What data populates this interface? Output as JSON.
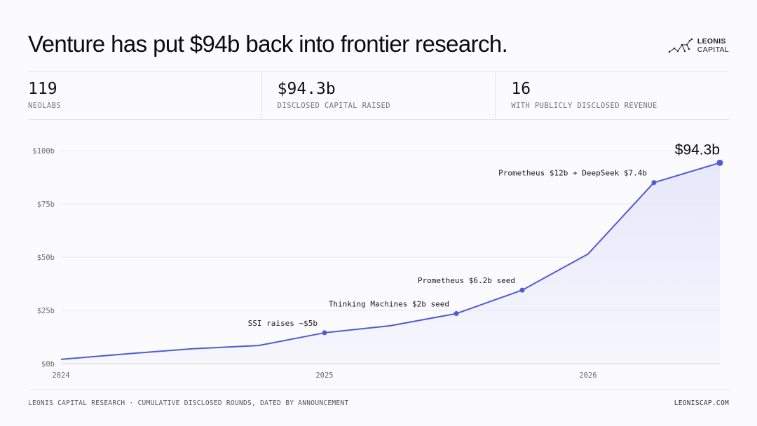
{
  "header": {
    "headline": "Venture has put $94b back into frontier research.",
    "logo_line1": "LEONIS",
    "logo_line2": "CAPITAL"
  },
  "stats": [
    {
      "value": "119",
      "label": "NEOLABS"
    },
    {
      "value": "$94.3b",
      "label": "DISCLOSED CAPITAL RAISED"
    },
    {
      "value": "16",
      "label": "WITH PUBLICLY DISCLOSED REVENUE"
    }
  ],
  "colors": {
    "line": "#4f5bd5",
    "fill": "#e7e8fb",
    "grid": "#e9e9ef",
    "axis_text": "#6b6b72"
  },
  "chart_data": {
    "type": "area",
    "xlabel": "",
    "ylabel": "",
    "x_ticks": [
      "2024",
      "2025",
      "2026"
    ],
    "y_ticks": [
      "$0b",
      "$25b",
      "$50b",
      "$75b",
      "$100b"
    ],
    "ylim": [
      0,
      100
    ],
    "xlim": [
      "2024-01",
      "2026-07"
    ],
    "grid": true,
    "series": [
      {
        "points": [
          {
            "x": "2024-01",
            "y": 2
          },
          {
            "x": "2024-04",
            "y": 4.6
          },
          {
            "x": "2024-07",
            "y": 7.0
          },
          {
            "x": "2024-10",
            "y": 8.5
          },
          {
            "x": "2025-01",
            "y": 14.5
          },
          {
            "x": "2025-04",
            "y": 17.8
          },
          {
            "x": "2025-07",
            "y": 23.5
          },
          {
            "x": "2025-10",
            "y": 34.5
          },
          {
            "x": "2026-01",
            "y": 51.5
          },
          {
            "x": "2026-04",
            "y": 85.0
          },
          {
            "x": "2026-07",
            "y": 94.3
          }
        ]
      }
    ],
    "annotations": [
      {
        "point_index": 4,
        "label": "SSI raises ~$5b",
        "align": "right"
      },
      {
        "point_index": 6,
        "label": "Thinking Machines $2b seed",
        "align": "right"
      },
      {
        "point_index": 7,
        "label": "Prometheus $6.2b seed",
        "align": "right"
      },
      {
        "point_index": 9,
        "label": "Prometheus $12b + DeepSeek $7.4b",
        "align": "right"
      }
    ],
    "end_label": "$94.3b"
  },
  "footer": {
    "source": "LEONIS CAPITAL RESEARCH · CUMULATIVE DISCLOSED ROUNDS, DATED BY ANNOUNCEMENT",
    "site": "LEONISCAP.COM"
  }
}
